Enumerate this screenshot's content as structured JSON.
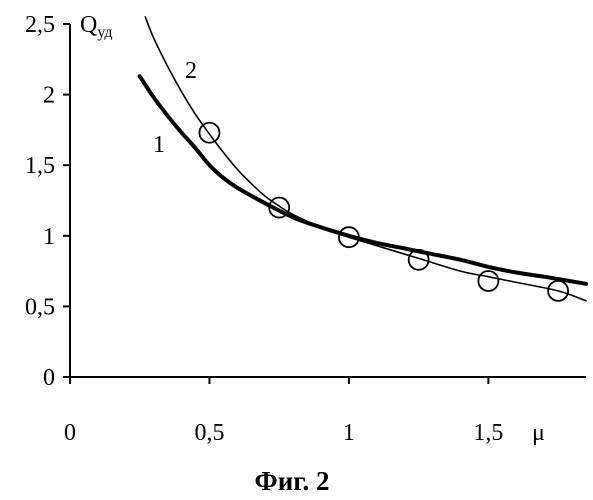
{
  "chart_data": {
    "type": "line",
    "ylabel": "Q",
    "ylabel_subscript": "уд",
    "xlabel": "μ",
    "caption": "Фиг. 2",
    "xlim": [
      0,
      1.85
    ],
    "ylim": [
      0,
      2.5
    ],
    "x_ticks": [
      0,
      0.5,
      1,
      1.5
    ],
    "x_tick_labels": [
      "0",
      "0,5",
      "1",
      "1,5"
    ],
    "y_ticks": [
      0,
      0.5,
      1,
      1.5,
      2,
      2.5
    ],
    "y_tick_labels": [
      "0",
      "0,5",
      "1",
      "1,5",
      "2",
      "2,5"
    ],
    "grid": false,
    "series": [
      {
        "name": "1",
        "style": "thick",
        "x": [
          0.25,
          0.3,
          0.35,
          0.4,
          0.45,
          0.5,
          0.55,
          0.6,
          0.7,
          0.8,
          0.9,
          1.0,
          1.1,
          1.2,
          1.3,
          1.4,
          1.5,
          1.6,
          1.7,
          1.85
        ],
        "y": [
          2.13,
          1.98,
          1.85,
          1.73,
          1.62,
          1.5,
          1.41,
          1.34,
          1.23,
          1.13,
          1.06,
          1.0,
          0.95,
          0.91,
          0.87,
          0.83,
          0.78,
          0.74,
          0.71,
          0.66
        ]
      },
      {
        "name": "2",
        "style": "thin",
        "x": [
          0.27,
          0.3,
          0.35,
          0.4,
          0.45,
          0.5,
          0.55,
          0.6,
          0.65,
          0.7,
          0.75,
          0.8,
          0.9,
          1.0,
          1.1,
          1.25,
          1.4,
          1.5,
          1.6,
          1.75,
          1.85
        ],
        "y": [
          2.55,
          2.4,
          2.2,
          2.02,
          1.86,
          1.72,
          1.59,
          1.47,
          1.37,
          1.28,
          1.21,
          1.15,
          1.06,
          0.99,
          0.93,
          0.84,
          0.75,
          0.71,
          0.67,
          0.61,
          0.54
        ]
      }
    ],
    "markers": {
      "shape": "circle",
      "x": [
        0.5,
        0.75,
        1.0,
        1.25,
        1.5,
        1.75
      ],
      "y": [
        1.73,
        1.2,
        0.99,
        0.83,
        0.68,
        0.61
      ]
    }
  }
}
